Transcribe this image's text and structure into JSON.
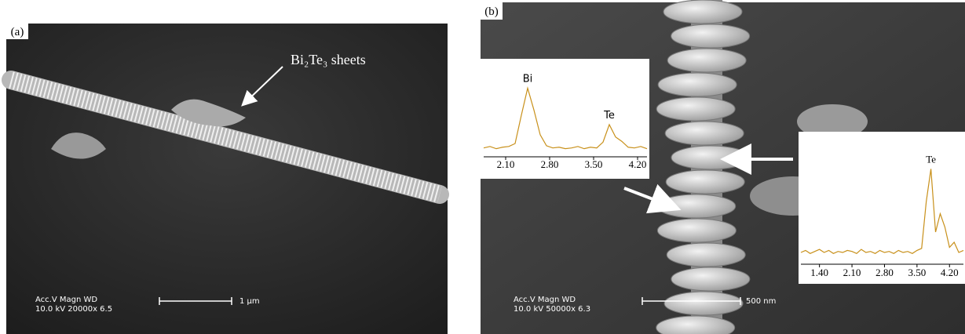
{
  "panels": [
    {
      "label": "(a)",
      "annotation": "Bi₂Te₃ sheets",
      "scale_bar": {
        "header": "Acc.V  Magn    WD",
        "settings": "10.0 kV 20000x  6.5",
        "length": "1 µm"
      }
    },
    {
      "label": "(b)",
      "scale_bar": {
        "header": "Acc.V  Magn    WD",
        "settings": "10.0 kV 50000x  6.3",
        "length": "500 nm"
      }
    }
  ],
  "chart_data": [
    {
      "type": "line",
      "color": "#c8901a",
      "x": [
        1.75,
        1.85,
        1.95,
        2.05,
        2.15,
        2.25,
        2.35,
        2.45,
        2.55,
        2.65,
        2.75,
        2.85,
        2.95,
        3.05,
        3.15,
        3.25,
        3.35,
        3.45,
        3.55,
        3.65,
        3.75,
        3.85,
        3.95,
        4.05,
        4.15,
        4.25,
        4.35
      ],
      "values": [
        10,
        12,
        9,
        11,
        12,
        16,
        55,
        92,
        62,
        28,
        13,
        10,
        11,
        9,
        10,
        12,
        9,
        11,
        10,
        18,
        42,
        25,
        19,
        11,
        10,
        12,
        9
      ],
      "xlim": [
        1.75,
        4.35
      ],
      "ylim": [
        0,
        100
      ],
      "xticks": [
        {
          "value": 2.1,
          "label": "2.10"
        },
        {
          "value": 2.8,
          "label": "2.80"
        },
        {
          "value": 3.5,
          "label": "3.50"
        },
        {
          "value": 4.2,
          "label": "4.20"
        }
      ],
      "annotations": [
        {
          "text": "Bi",
          "x": 2.45
        },
        {
          "text": "Te",
          "x": 3.75
        }
      ]
    },
    {
      "type": "line",
      "color": "#c8901a",
      "x": [
        1.0,
        1.1,
        1.2,
        1.3,
        1.4,
        1.5,
        1.6,
        1.7,
        1.8,
        1.9,
        2.0,
        2.1,
        2.2,
        2.3,
        2.4,
        2.5,
        2.6,
        2.7,
        2.8,
        2.9,
        3.0,
        3.1,
        3.2,
        3.3,
        3.4,
        3.5,
        3.6,
        3.7,
        3.8,
        3.9,
        4.0,
        4.1,
        4.2,
        4.3,
        4.4,
        4.5
      ],
      "values": [
        10,
        12,
        9,
        11,
        13,
        10,
        12,
        9,
        11,
        10,
        12,
        11,
        9,
        13,
        10,
        11,
        9,
        12,
        10,
        11,
        9,
        12,
        10,
        11,
        9,
        12,
        14,
        60,
        92,
        30,
        48,
        35,
        15,
        20,
        10,
        12
      ],
      "xlim": [
        1.0,
        4.5
      ],
      "ylim": [
        0,
        100
      ],
      "xticks": [
        {
          "value": 1.4,
          "label": "1.40"
        },
        {
          "value": 2.1,
          "label": "2.10"
        },
        {
          "value": 2.8,
          "label": "2.80"
        },
        {
          "value": 3.5,
          "label": "3.50"
        },
        {
          "value": 4.2,
          "label": "4.20"
        }
      ],
      "annotations": [
        {
          "text": "Te",
          "x": 3.8
        }
      ]
    }
  ]
}
